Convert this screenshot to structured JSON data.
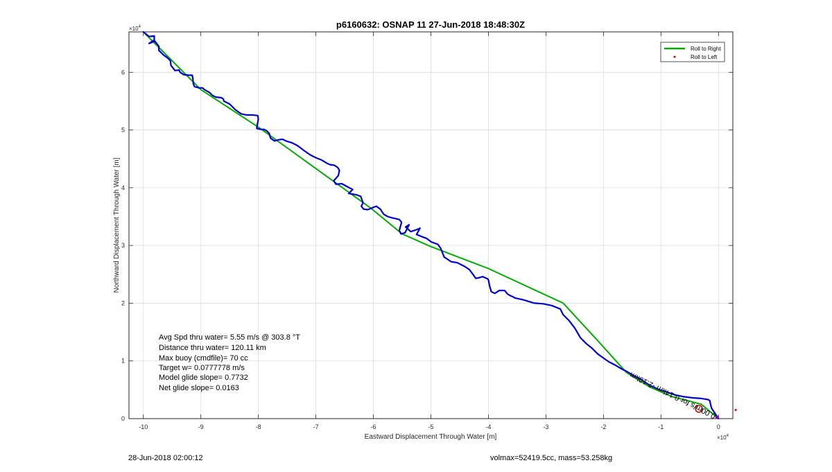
{
  "chart_data": {
    "type": "line",
    "title": "p6160632: OSNAP 11 27-Jun-2018 18:48:30Z",
    "xlabel": "Eastward Displacement Through Water [m]",
    "ylabel": "Northward Displacement Through Water [m]",
    "x_exponent_label": "×10",
    "x_exponent": "4",
    "y_exponent_label": "×10",
    "y_exponent": "4",
    "xlim": [
      -102500,
      2500
    ],
    "ylim": [
      0,
      67000
    ],
    "xticks": [
      -100000,
      -90000,
      -80000,
      -70000,
      -60000,
      -50000,
      -40000,
      -30000,
      -20000,
      -10000,
      0
    ],
    "xtick_labels": [
      "-10",
      "-9",
      "-8",
      "-7",
      "-6",
      "-5",
      "-4",
      "-3",
      "-2",
      "-1",
      "0"
    ],
    "yticks": [
      0,
      10000,
      20000,
      30000,
      40000,
      50000,
      60000
    ],
    "ytick_labels": [
      "0",
      "1",
      "2",
      "3",
      "4",
      "5",
      "6"
    ],
    "grid": true,
    "legend_position": "top-right",
    "legend": [
      {
        "name": "Roll to Right",
        "color": "#00aa00",
        "style": "line"
      },
      {
        "name": "Roll to Left",
        "color": "#cc0000",
        "style": "dot"
      }
    ],
    "series": [
      {
        "name": "Roll to Right",
        "color": "#00aa00",
        "x": [
          -100000,
          -90000,
          -80000,
          -60500,
          -55000,
          -50000,
          -40000,
          -27000,
          -21000,
          -16000,
          -12000,
          -8000,
          -3000,
          0
        ],
        "y": [
          67000,
          57000,
          50500,
          36500,
          32000,
          29800,
          26000,
          20000,
          13500,
          8000,
          5500,
          3800,
          2500,
          0
        ]
      },
      {
        "name": "glider track",
        "color": "#0000cc",
        "x": [
          -100000,
          -99000,
          -98100,
          -98100,
          -99000,
          -98000,
          -97300,
          -97300,
          -96800,
          -96500,
          -95800,
          -95300,
          -95200,
          -94500,
          -93800,
          -93600,
          -93000,
          -92200,
          -91500,
          -91400,
          -91300,
          -91100,
          -90300,
          -89700,
          -89400,
          -88500,
          -88000,
          -87400,
          -86500,
          -86100,
          -86000,
          -85000,
          -84000,
          -83000,
          -82000,
          -81000,
          -80100,
          -80000,
          -80300,
          -80000,
          -79500,
          -79000,
          -78500,
          -78100,
          -77900,
          -77200,
          -76500,
          -75800,
          -75200,
          -74200,
          -73200,
          -72000,
          -71000,
          -70000,
          -69000,
          -68000,
          -67500,
          -66800,
          -66200,
          -65900,
          -66100,
          -66900,
          -66500,
          -65500,
          -64200,
          -63600,
          -64300,
          -63000,
          -62200,
          -61800,
          -62100,
          -61700,
          -61000,
          -60000,
          -59500,
          -58800,
          -58200,
          -57500,
          -56800,
          -55500,
          -55100,
          -55500,
          -55200,
          -54500,
          -54100,
          -53800,
          -54400,
          -53500,
          -52600,
          -51900,
          -52500,
          -51500,
          -50700,
          -49900,
          -48800,
          -48300,
          -47700,
          -46500,
          -45400,
          -44200,
          -43300,
          -42700,
          -42200,
          -41700,
          -41000,
          -40100,
          -40000,
          -39800,
          -39500,
          -38900,
          -38100,
          -37200,
          -37000,
          -36700,
          -36200,
          -35700,
          -35400,
          -34900,
          -34000,
          -33000,
          -32000,
          -30500,
          -29000,
          -27500,
          -27000,
          -26000,
          -25000,
          -24000,
          -23000,
          -22000,
          -21000,
          -20000,
          -19000,
          -18000,
          -17000,
          -16000,
          -15000,
          -13500,
          -12000,
          -10500,
          -9000,
          -7500,
          -6000,
          -4500,
          -3000,
          -1800,
          -1500,
          -1400,
          -1200,
          -800,
          -400,
          -150,
          0
        ],
        "y": [
          67000,
          66200,
          66300,
          65600,
          65000,
          65400,
          64500,
          63800,
          63300,
          63000,
          62500,
          62000,
          61200,
          60300,
          60400,
          60000,
          59600,
          59500,
          59500,
          59000,
          58000,
          57500,
          57300,
          57300,
          57000,
          56500,
          56000,
          55700,
          55600,
          55400,
          55000,
          54500,
          53500,
          52800,
          52600,
          52600,
          52500,
          51900,
          50300,
          50200,
          50100,
          50100,
          49800,
          49400,
          48600,
          48100,
          48300,
          48400,
          48100,
          47800,
          47300,
          46400,
          45700,
          45200,
          44800,
          44200,
          44000,
          43900,
          43500,
          43000,
          42100,
          41200,
          40600,
          40700,
          40000,
          39700,
          39000,
          38800,
          38500,
          37400,
          36800,
          36300,
          36200,
          36600,
          36800,
          36300,
          35400,
          35000,
          34800,
          34500,
          34000,
          32600,
          32000,
          32200,
          33000,
          33600,
          33200,
          32400,
          32700,
          33000,
          31900,
          31500,
          31200,
          30600,
          30200,
          29500,
          28000,
          27200,
          27000,
          26400,
          25800,
          25000,
          24300,
          24400,
          24600,
          24200,
          24000,
          23000,
          22000,
          21700,
          22200,
          22200,
          22000,
          21600,
          21300,
          21100,
          20900,
          20800,
          20600,
          20300,
          20000,
          19900,
          19600,
          19000,
          18000,
          17000,
          15700,
          14000,
          13000,
          12200,
          11200,
          10500,
          9800,
          9300,
          8700,
          8200,
          7600,
          6800,
          5800,
          5100,
          4600,
          4100,
          3800,
          3600,
          3500,
          3300,
          3100,
          2600,
          1800,
          1200,
          600,
          200,
          0
        ]
      }
    ],
    "markers": [
      {
        "name": "Roll to Left",
        "x": 3000,
        "y": 1500,
        "color": "#cc0000"
      }
    ],
    "start_marker": {
      "x": -3400,
      "y": 1700,
      "color": "#cc0000"
    },
    "annotations": [
      "Avg Spd thru water=  5.55 m/s @ 303.8 °T",
      "Distance thru water= 120.11 km",
      "Max buoy (cmdfile)= 70 cc",
      "Target w= 0.0777778 m/s",
      "Model glide slope= 0.7732",
      "Net glide slope= 0.0163"
    ],
    "rotated_label": "0.00m/s for 0.14km  -2.10km"
  },
  "footer": {
    "left": "28-Jun-2018 02:00:12",
    "right": "volmax=52419.5cc, mass=53.258kg"
  }
}
